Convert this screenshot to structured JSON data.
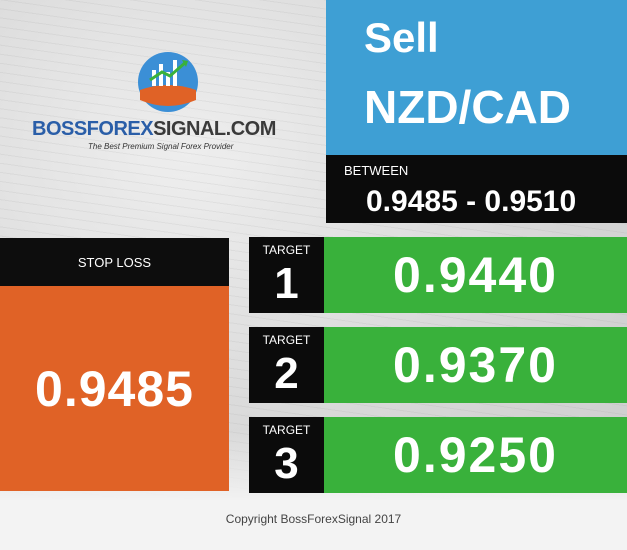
{
  "colors": {
    "sell_panel": "#3e9fd4",
    "dark_panel": "#0b0b0b",
    "stop_loss_panel": "#e06226",
    "target_panel": "#39b13b",
    "brand_blue": "#2a5ea8"
  },
  "logo": {
    "brand_part1": "BOSSFOREX",
    "brand_part2": "SIGNAL.COM",
    "tagline": "The Best Premium Signal Forex Provider",
    "icon": "bull-chart-globe-icon"
  },
  "signal": {
    "action": "Sell",
    "pair": "NZD/CAD",
    "between_label": "BETWEEN",
    "between_range": "0.9485 - 0.9510"
  },
  "stop_loss": {
    "label": "STOP LOSS",
    "value": "0.9485"
  },
  "targets": [
    {
      "label": "TARGET",
      "number": "1",
      "value": "0.9440"
    },
    {
      "label": "TARGET",
      "number": "2",
      "value": "0.9370"
    },
    {
      "label": "TARGET",
      "number": "3",
      "value": "0.9250"
    }
  ],
  "footer": {
    "copyright": "Copyright BossForexSignal 2017"
  }
}
